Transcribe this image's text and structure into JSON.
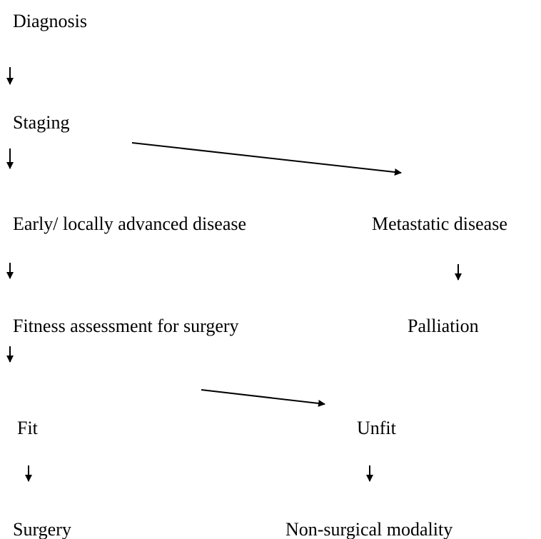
{
  "nodes": [
    {
      "label": "Diagnosis"
    },
    {
      "label": "Staging"
    },
    {
      "label": "Early/ locally advanced disease"
    },
    {
      "label": "Metastatic disease"
    },
    {
      "label": "Fitness assessment for surgery"
    },
    {
      "label": "Palliation"
    },
    {
      "label": "Fit"
    },
    {
      "label": "Unfit"
    },
    {
      "label": "Surgery"
    },
    {
      "label": "Non-surgical modality"
    }
  ]
}
